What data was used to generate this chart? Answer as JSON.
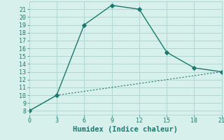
{
  "line1_x": [
    0,
    3,
    6,
    9,
    12,
    15,
    18,
    21
  ],
  "line1_y": [
    8,
    10,
    19,
    21.5,
    21,
    15.5,
    13.5,
    13
  ],
  "line2_x": [
    0,
    3,
    6,
    9,
    12,
    15,
    18,
    21
  ],
  "line2_y": [
    8,
    10,
    10.5,
    11,
    11.5,
    12,
    12.5,
    13
  ],
  "line_color": "#1a7a6e",
  "bg_color": "#d8f0ec",
  "grid_color": "#add8d0",
  "xlabel": "Humidex (Indice chaleur)",
  "xlim": [
    0,
    21
  ],
  "ylim": [
    7.5,
    22
  ],
  "xticks": [
    0,
    3,
    6,
    9,
    12,
    15,
    18,
    21
  ],
  "yticks": [
    8,
    9,
    10,
    11,
    12,
    13,
    14,
    15,
    16,
    17,
    18,
    19,
    20,
    21
  ],
  "xlabel_fontsize": 7.5,
  "tick_fontsize": 6.0
}
